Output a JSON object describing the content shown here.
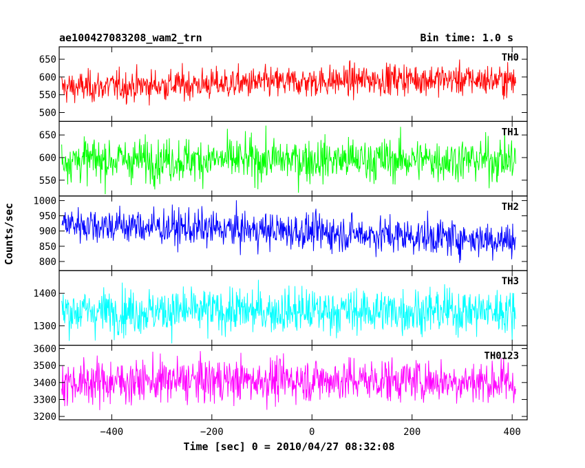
{
  "header": {
    "title": "ae100427083208_wam2_trn",
    "bin_time": "Bin time: 1.0 s"
  },
  "chart_data": {
    "type": "line",
    "xlabel": "Time [sec] 0 = 2010/04/27 08:32:08",
    "ylabel": "Counts/sec",
    "xlim": [
      -505,
      430
    ],
    "x_range": [
      -500,
      407
    ],
    "x_step": 1,
    "x_ticks": [
      -400,
      -200,
      0,
      200,
      400
    ],
    "grid": false,
    "panels": [
      {
        "name": "TH0",
        "color": "#ff0000",
        "ylim": [
          475,
          685
        ],
        "y_ticks": [
          500,
          550,
          600,
          650
        ],
        "mean": [
          570,
          578,
          585,
          595,
          590
        ],
        "noise": 22
      },
      {
        "name": "TH1",
        "color": "#00ff00",
        "ylim": [
          515,
          680
        ],
        "y_ticks": [
          550,
          600,
          650
        ],
        "mean": [
          595,
          595,
          595,
          595,
          595
        ],
        "noise": 24
      },
      {
        "name": "TH2",
        "color": "#0000ff",
        "ylim": [
          770,
          1015
        ],
        "y_ticks": [
          800,
          850,
          900,
          950,
          1000
        ],
        "mean": [
          925,
          910,
          900,
          885,
          870
        ],
        "noise": 30
      },
      {
        "name": "TH3",
        "color": "#00ffff",
        "ylim": [
          1240,
          1470
        ],
        "y_ticks": [
          1300,
          1400
        ],
        "mean": [
          1345,
          1345,
          1345,
          1345,
          1345
        ],
        "noise": 35
      },
      {
        "name": "TH0123",
        "color": "#ff00ff",
        "ylim": [
          3180,
          3620
        ],
        "y_ticks": [
          3200,
          3300,
          3400,
          3500,
          3600
        ],
        "mean": [
          3400,
          3410,
          3415,
          3415,
          3400
        ],
        "noise": 65
      }
    ]
  }
}
